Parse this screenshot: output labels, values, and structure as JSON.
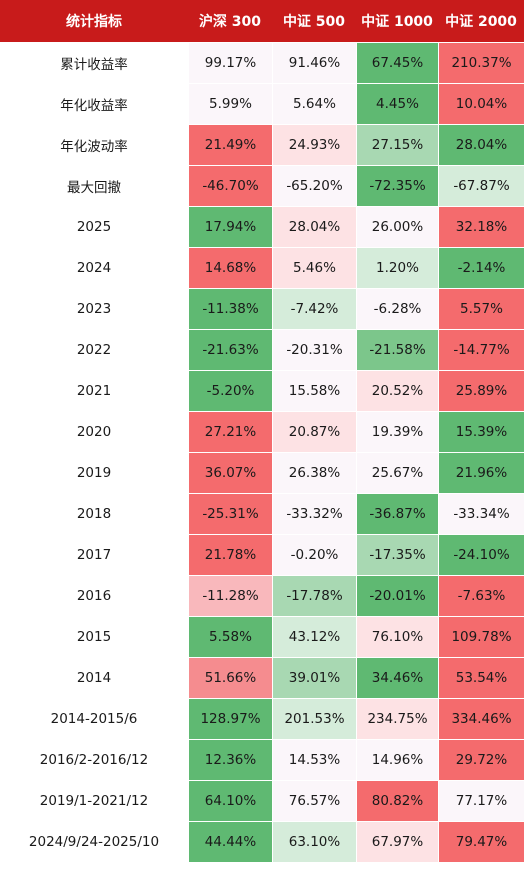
{
  "colors": {
    "header_bg": "#c81b1b",
    "header_text": "#ffffff",
    "text": "#1a1a1a",
    "label_bg": "#ffffff",
    "scale": {
      "green_dark": "#5fb972",
      "green_mid": "#7cc68b",
      "green_light": "#a8d8b2",
      "green_pale": "#d5ecda",
      "neutral": "#fbf6fa",
      "red_pale": "#fde2e4",
      "red_light": "#f9b8bc",
      "red_mid": "#f58c8f",
      "red_dark": "#f46b6d"
    }
  },
  "table": {
    "headers": [
      "统计指标",
      "沪深 300",
      "中证 500",
      "中证 1000",
      "中证 2000"
    ],
    "rows": [
      {
        "label": "累计收益率",
        "cells": [
          {
            "v": "99.17%",
            "c": "neutral"
          },
          {
            "v": "91.46%",
            "c": "neutral"
          },
          {
            "v": "67.45%",
            "c": "green_dark"
          },
          {
            "v": "210.37%",
            "c": "red_dark"
          }
        ]
      },
      {
        "label": "年化收益率",
        "cells": [
          {
            "v": "5.99%",
            "c": "neutral"
          },
          {
            "v": "5.64%",
            "c": "neutral"
          },
          {
            "v": "4.45%",
            "c": "green_dark"
          },
          {
            "v": "10.04%",
            "c": "red_dark"
          }
        ]
      },
      {
        "label": "年化波动率",
        "cells": [
          {
            "v": "21.49%",
            "c": "red_dark"
          },
          {
            "v": "24.93%",
            "c": "red_pale"
          },
          {
            "v": "27.15%",
            "c": "green_light"
          },
          {
            "v": "28.04%",
            "c": "green_dark"
          }
        ]
      },
      {
        "label": "最大回撤",
        "cells": [
          {
            "v": "-46.70%",
            "c": "red_dark"
          },
          {
            "v": "-65.20%",
            "c": "neutral"
          },
          {
            "v": "-72.35%",
            "c": "green_dark"
          },
          {
            "v": "-67.87%",
            "c": "green_pale"
          }
        ]
      },
      {
        "label": "2025",
        "cells": [
          {
            "v": "17.94%",
            "c": "green_dark"
          },
          {
            "v": "28.04%",
            "c": "red_pale"
          },
          {
            "v": "26.00%",
            "c": "neutral"
          },
          {
            "v": "32.18%",
            "c": "red_dark"
          }
        ]
      },
      {
        "label": "2024",
        "cells": [
          {
            "v": "14.68%",
            "c": "red_dark"
          },
          {
            "v": "5.46%",
            "c": "red_pale"
          },
          {
            "v": "1.20%",
            "c": "green_pale"
          },
          {
            "v": "-2.14%",
            "c": "green_dark"
          }
        ]
      },
      {
        "label": "2023",
        "cells": [
          {
            "v": "-11.38%",
            "c": "green_dark"
          },
          {
            "v": "-7.42%",
            "c": "green_pale"
          },
          {
            "v": "-6.28%",
            "c": "neutral"
          },
          {
            "v": "5.57%",
            "c": "red_dark"
          }
        ]
      },
      {
        "label": "2022",
        "cells": [
          {
            "v": "-21.63%",
            "c": "green_dark"
          },
          {
            "v": "-20.31%",
            "c": "neutral"
          },
          {
            "v": "-21.58%",
            "c": "green_mid"
          },
          {
            "v": "-14.77%",
            "c": "red_dark"
          }
        ]
      },
      {
        "label": "2021",
        "cells": [
          {
            "v": "-5.20%",
            "c": "green_dark"
          },
          {
            "v": "15.58%",
            "c": "neutral"
          },
          {
            "v": "20.52%",
            "c": "red_pale"
          },
          {
            "v": "25.89%",
            "c": "red_dark"
          }
        ]
      },
      {
        "label": "2020",
        "cells": [
          {
            "v": "27.21%",
            "c": "red_dark"
          },
          {
            "v": "20.87%",
            "c": "red_pale"
          },
          {
            "v": "19.39%",
            "c": "neutral"
          },
          {
            "v": "15.39%",
            "c": "green_dark"
          }
        ]
      },
      {
        "label": "2019",
        "cells": [
          {
            "v": "36.07%",
            "c": "red_dark"
          },
          {
            "v": "26.38%",
            "c": "neutral"
          },
          {
            "v": "25.67%",
            "c": "neutral"
          },
          {
            "v": "21.96%",
            "c": "green_dark"
          }
        ]
      },
      {
        "label": "2018",
        "cells": [
          {
            "v": "-25.31%",
            "c": "red_dark"
          },
          {
            "v": "-33.32%",
            "c": "neutral"
          },
          {
            "v": "-36.87%",
            "c": "green_dark"
          },
          {
            "v": "-33.34%",
            "c": "neutral"
          }
        ]
      },
      {
        "label": "2017",
        "cells": [
          {
            "v": "21.78%",
            "c": "red_dark"
          },
          {
            "v": "-0.20%",
            "c": "neutral"
          },
          {
            "v": "-17.35%",
            "c": "green_light"
          },
          {
            "v": "-24.10%",
            "c": "green_dark"
          }
        ]
      },
      {
        "label": "2016",
        "cells": [
          {
            "v": "-11.28%",
            "c": "red_light"
          },
          {
            "v": "-17.78%",
            "c": "green_light"
          },
          {
            "v": "-20.01%",
            "c": "green_dark"
          },
          {
            "v": "-7.63%",
            "c": "red_dark"
          }
        ]
      },
      {
        "label": "2015",
        "cells": [
          {
            "v": "5.58%",
            "c": "green_dark"
          },
          {
            "v": "43.12%",
            "c": "green_pale"
          },
          {
            "v": "76.10%",
            "c": "red_pale"
          },
          {
            "v": "109.78%",
            "c": "red_dark"
          }
        ]
      },
      {
        "label": "2014",
        "cells": [
          {
            "v": "51.66%",
            "c": "red_mid"
          },
          {
            "v": "39.01%",
            "c": "green_light"
          },
          {
            "v": "34.46%",
            "c": "green_dark"
          },
          {
            "v": "53.54%",
            "c": "red_dark"
          }
        ]
      },
      {
        "label": "2014-2015/6",
        "cells": [
          {
            "v": "128.97%",
            "c": "green_dark"
          },
          {
            "v": "201.53%",
            "c": "green_pale"
          },
          {
            "v": "234.75%",
            "c": "red_pale"
          },
          {
            "v": "334.46%",
            "c": "red_dark"
          }
        ]
      },
      {
        "label": "2016/2-2016/12",
        "cells": [
          {
            "v": "12.36%",
            "c": "green_dark"
          },
          {
            "v": "14.53%",
            "c": "neutral"
          },
          {
            "v": "14.96%",
            "c": "neutral"
          },
          {
            "v": "29.72%",
            "c": "red_dark"
          }
        ]
      },
      {
        "label": "2019/1-2021/12",
        "cells": [
          {
            "v": "64.10%",
            "c": "green_dark"
          },
          {
            "v": "76.57%",
            "c": "neutral"
          },
          {
            "v": "80.82%",
            "c": "red_dark"
          },
          {
            "v": "77.17%",
            "c": "neutral"
          }
        ]
      },
      {
        "label": "2024/9/24-2025/10",
        "cells": [
          {
            "v": "44.44%",
            "c": "green_dark"
          },
          {
            "v": "63.10%",
            "c": "green_pale"
          },
          {
            "v": "67.97%",
            "c": "red_pale"
          },
          {
            "v": "79.47%",
            "c": "red_dark"
          }
        ]
      }
    ]
  }
}
